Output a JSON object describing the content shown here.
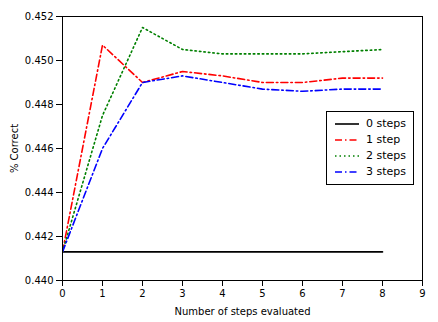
{
  "chart_data": {
    "type": "line",
    "xlabel": "Number of steps evaluated",
    "ylabel": "% Correct",
    "x": [
      0,
      1,
      2,
      3,
      4,
      5,
      6,
      7,
      8
    ],
    "xlim": [
      0,
      9
    ],
    "xticks": [
      0,
      1,
      2,
      3,
      4,
      5,
      6,
      7,
      8,
      9
    ],
    "ylim": [
      0.44,
      0.452
    ],
    "yticks": [
      {
        "value": 0.44,
        "label": "0.440"
      },
      0.442,
      0.444,
      0.446,
      0.448,
      {
        "value": 0.45,
        "label": "0.450"
      },
      0.452
    ],
    "series": [
      {
        "name": "0 steps",
        "color": "black",
        "line_style": "solid",
        "values": [
          0.4413,
          0.4413,
          0.4413,
          0.4413,
          0.4413,
          0.4413,
          0.4413,
          0.4413,
          0.4413
        ]
      },
      {
        "name": "1 step",
        "color": "red",
        "line_style": "dashdot",
        "values": [
          0.4413,
          0.4507,
          0.449,
          0.4495,
          0.4493,
          0.449,
          0.449,
          0.4492,
          0.4492
        ]
      },
      {
        "name": "2 steps",
        "color": "green",
        "line_style": "dotted",
        "values": [
          0.4413,
          0.4475,
          0.4515,
          0.4505,
          0.4503,
          0.4503,
          0.4503,
          0.4504,
          0.4505
        ]
      },
      {
        "name": "3 steps",
        "color": "blue",
        "line_style": "dashdot",
        "values": [
          0.4413,
          0.446,
          0.449,
          0.4493,
          0.449,
          0.4487,
          0.4486,
          0.4487,
          0.4487
        ]
      }
    ],
    "legend": "center right",
    "grid": false
  }
}
